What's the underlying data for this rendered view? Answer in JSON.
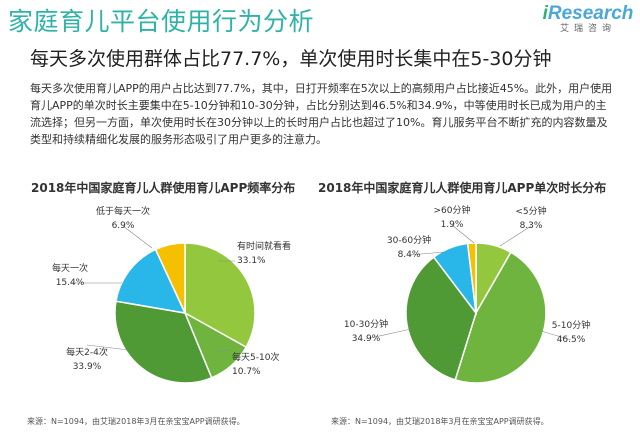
{
  "page": {
    "title": "家庭育儿平台使用行为分析",
    "logo": {
      "i": "i",
      "main": "Research",
      "sub": "艾瑞咨询"
    },
    "headline": "每天多次使用群体占比77.7%，单次使用时长集中在5-30分钟",
    "body": "每天多次使用育儿APP的用户占比达到77.7%，其中，日打开频率在5次以上的高频用户占比接近45%。此外，用户使用育儿APP的单次时长主要集中在5-10分钟和10-30分钟，占比分别达到46.5%和34.9%，中等使用时长已成为用户的主流选择；但另一方面，单次使用时长在30分钟以上的长时用户占比也超过了10%。育儿服务平台不断扩充的内容数量及类型和持续精细化发展的服务形态吸引了用户更多的注意力。",
    "source_left": "来源：N=1094，由艾瑞2018年3月在亲宝宝APP调研获得。",
    "source_right": "来源：N=1094，由艾瑞2018年3月在亲宝宝APP调研获得。"
  },
  "chart_data": [
    {
      "type": "pie",
      "title": "2018年中国家庭育儿人群使用育儿APP频率分布",
      "slices": [
        {
          "label": "有时间就看看",
          "value": 33.1,
          "value_label": "33.1%",
          "color": "#93c83e"
        },
        {
          "label": "每天5-10次",
          "value": 10.7,
          "value_label": "10.7%",
          "color": "#6fb43f"
        },
        {
          "label": "每天2-4次",
          "value": 33.9,
          "value_label": "33.9%",
          "color": "#4f9a34"
        },
        {
          "label": "每天一次",
          "value": 15.4,
          "value_label": "15.4%",
          "color": "#29b6e8"
        },
        {
          "label": "低于每天一次",
          "value": 6.9,
          "value_label": "6.9%",
          "color": "#f5c000"
        }
      ]
    },
    {
      "type": "pie",
      "title": "2018年中国家庭育儿人群使用育儿APP单次时长分布",
      "slices": [
        {
          "label": "<5分钟",
          "value": 8.3,
          "value_label": "8.3%",
          "color": "#93c83e"
        },
        {
          "label": "5-10分钟",
          "value": 46.5,
          "value_label": "46.5%",
          "color": "#6fb43f"
        },
        {
          "label": "10-30分钟",
          "value": 34.9,
          "value_label": "34.9%",
          "color": "#4f9a34"
        },
        {
          "label": "30-60分钟",
          "value": 8.4,
          "value_label": "8.4%",
          "color": "#29b6e8"
        },
        {
          "label": ">60分钟",
          "value": 1.9,
          "value_label": "1.9%",
          "color": "#f5c000"
        }
      ]
    }
  ]
}
